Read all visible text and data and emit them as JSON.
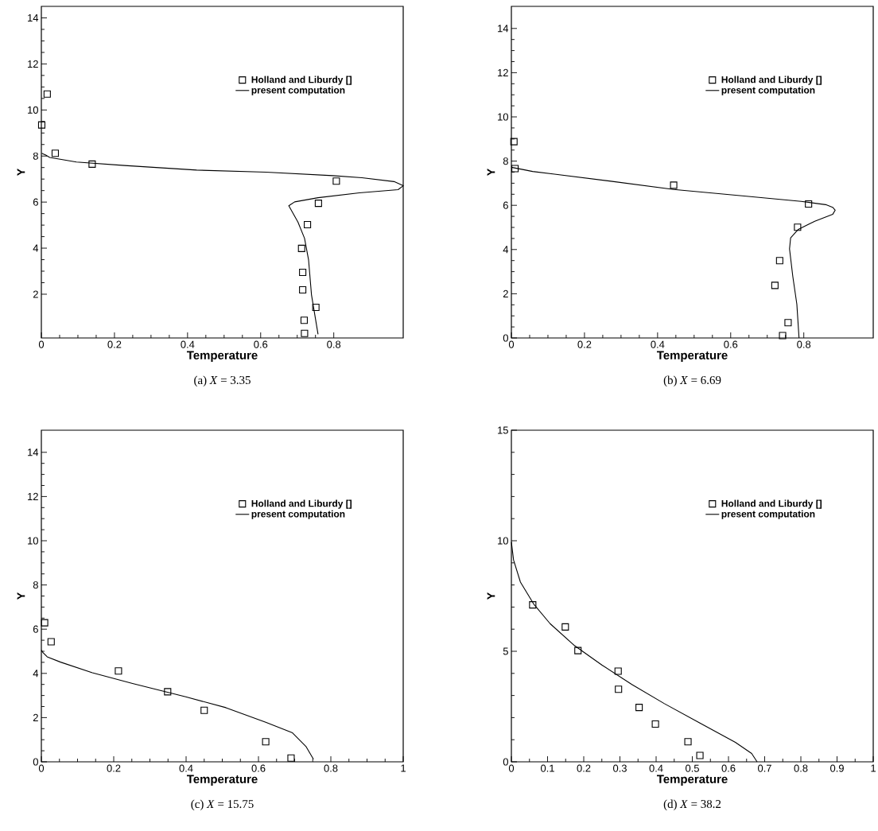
{
  "chart_data": [
    {
      "type": "line",
      "title": "(a) *X* = 3.35",
      "xlabel": "Temperature",
      "ylabel": "Y",
      "xlim": [
        0,
        0.99
      ],
      "ylim": [
        0.1,
        14.5
      ],
      "xticks": [
        0,
        0.2,
        0.4,
        0.6,
        0.8
      ],
      "yticks": [
        2,
        4,
        6,
        8,
        10,
        12,
        14
      ],
      "legend": "top right",
      "series": [
        {
          "name": "Holland and Liburdy []",
          "type": "scatter",
          "marker": "square",
          "color": "#000000",
          "x": [
            0.016,
            0.001,
            0.038,
            0.139,
            0.807,
            0.758,
            0.728,
            0.712,
            0.715,
            0.715,
            0.751,
            0.719,
            0.72
          ],
          "values": [
            10.69,
            9.35,
            8.12,
            7.65,
            6.91,
            5.95,
            5.02,
            3.99,
            2.95,
            2.19,
            1.43,
            0.87,
            0.3
          ]
        },
        {
          "name": "present computation",
          "type": "line",
          "line_style": "solid",
          "color": "#000000",
          "x": [
            0.757,
            0.739,
            0.731,
            0.72,
            0.702,
            0.677,
            0.693,
            0.757,
            0.87,
            0.976,
            0.99,
            0.965,
            0.877,
            0.797,
            0.615,
            0.425,
            0.228,
            0.096,
            0.023,
            0.012,
            0.001
          ],
          "values": [
            0.26,
            1.98,
            3.5,
            4.43,
            5.13,
            5.84,
            6.01,
            6.19,
            6.4,
            6.54,
            6.71,
            6.89,
            7.06,
            7.15,
            7.3,
            7.39,
            7.59,
            7.74,
            7.94,
            8.04,
            8.12
          ]
        }
      ]
    },
    {
      "type": "line",
      "title": "(b) *X* = 6.69",
      "xlabel": "Temperature",
      "ylabel": "Y",
      "xlim": [
        0,
        0.99
      ],
      "ylim": [
        0,
        15
      ],
      "xticks": [
        0,
        0.2,
        0.4,
        0.6,
        0.8
      ],
      "yticks": [
        0,
        2,
        4,
        6,
        8,
        10,
        12,
        14
      ],
      "legend": "top right",
      "series": [
        {
          "name": "Holland and Liburdy []",
          "type": "scatter",
          "marker": "square",
          "color": "#000000",
          "x": [
            0.007,
            0.01,
            0.444,
            0.813,
            0.783,
            0.734,
            0.721,
            0.757,
            0.742
          ],
          "values": [
            8.88,
            7.66,
            6.91,
            6.06,
            5.01,
            3.5,
            2.38,
            0.69,
            0.11
          ]
        },
        {
          "name": "present computation",
          "type": "line",
          "line_style": "solid",
          "color": "#000000",
          "x": [
            0.787,
            0.781,
            0.77,
            0.761,
            0.764,
            0.785,
            0.83,
            0.879,
            0.886,
            0.879,
            0.86,
            0.793,
            0.643,
            0.444,
            0.268,
            0.118,
            0.058,
            0.028,
            0.0
          ],
          "values": [
            0.0,
            1.53,
            2.78,
            4.03,
            4.53,
            4.91,
            5.28,
            5.59,
            5.78,
            5.91,
            6.03,
            6.18,
            6.41,
            6.72,
            7.1,
            7.41,
            7.53,
            7.63,
            7.72
          ]
        }
      ]
    },
    {
      "type": "line",
      "title": "(c) *X* = 15.75",
      "xlabel": "Temperature",
      "ylabel": "Y",
      "xlim": [
        0,
        1
      ],
      "ylim": [
        0,
        15
      ],
      "xticks": [
        0,
        0.2,
        0.4,
        0.6,
        0.8,
        1
      ],
      "yticks": [
        0,
        2,
        4,
        6,
        8,
        10,
        12,
        14
      ],
      "legend": "top right",
      "series": [
        {
          "name": "Holland and Liburdy []",
          "type": "scatter",
          "marker": "square",
          "color": "#000000",
          "x": [
            0.009,
            0.027,
            0.213,
            0.349,
            0.45,
            0.62,
            0.69
          ],
          "values": [
            6.29,
            5.43,
            4.11,
            3.17,
            2.33,
            0.91,
            0.17
          ]
        },
        {
          "name": "present computation",
          "type": "line",
          "line_style": "solid",
          "color": "#000000",
          "x": [
            0.752,
            0.731,
            0.694,
            0.62,
            0.51,
            0.399,
            0.252,
            0.141,
            0.053,
            0.016,
            0.005,
            0.0
          ],
          "values": [
            0.12,
            0.7,
            1.31,
            1.79,
            2.45,
            2.94,
            3.54,
            4.03,
            4.51,
            4.75,
            4.93,
            5.05
          ]
        }
      ]
    },
    {
      "type": "line",
      "title": "(d) *X* = 38.2",
      "xlabel": "Temperature",
      "ylabel": "Y",
      "xlim": [
        0,
        1
      ],
      "ylim": [
        0,
        15
      ],
      "xticks": [
        0,
        0.1,
        0.2,
        0.3,
        0.4,
        0.5,
        0.6,
        0.7,
        0.8,
        0.9,
        1
      ],
      "yticks": [
        0,
        5,
        10,
        15
      ],
      "legend": "top right",
      "series": [
        {
          "name": "Holland and Liburdy []",
          "type": "scatter",
          "marker": "square",
          "color": "#000000",
          "x": [
            0.059,
            0.149,
            0.184,
            0.295,
            0.296,
            0.353,
            0.398,
            0.488,
            0.521
          ],
          "values": [
            7.1,
            6.1,
            5.03,
            4.1,
            3.28,
            2.46,
            1.71,
            0.91,
            0.29
          ]
        },
        {
          "name": "present computation",
          "type": "line",
          "line_style": "solid",
          "color": "#000000",
          "x": [
            0.0,
            0.006,
            0.025,
            0.062,
            0.107,
            0.175,
            0.25,
            0.333,
            0.423,
            0.521,
            0.619,
            0.664,
            0.679
          ],
          "values": [
            9.94,
            9.13,
            8.13,
            7.13,
            6.25,
            5.25,
            4.38,
            3.5,
            2.63,
            1.75,
            0.88,
            0.38,
            0.0
          ]
        }
      ]
    }
  ]
}
